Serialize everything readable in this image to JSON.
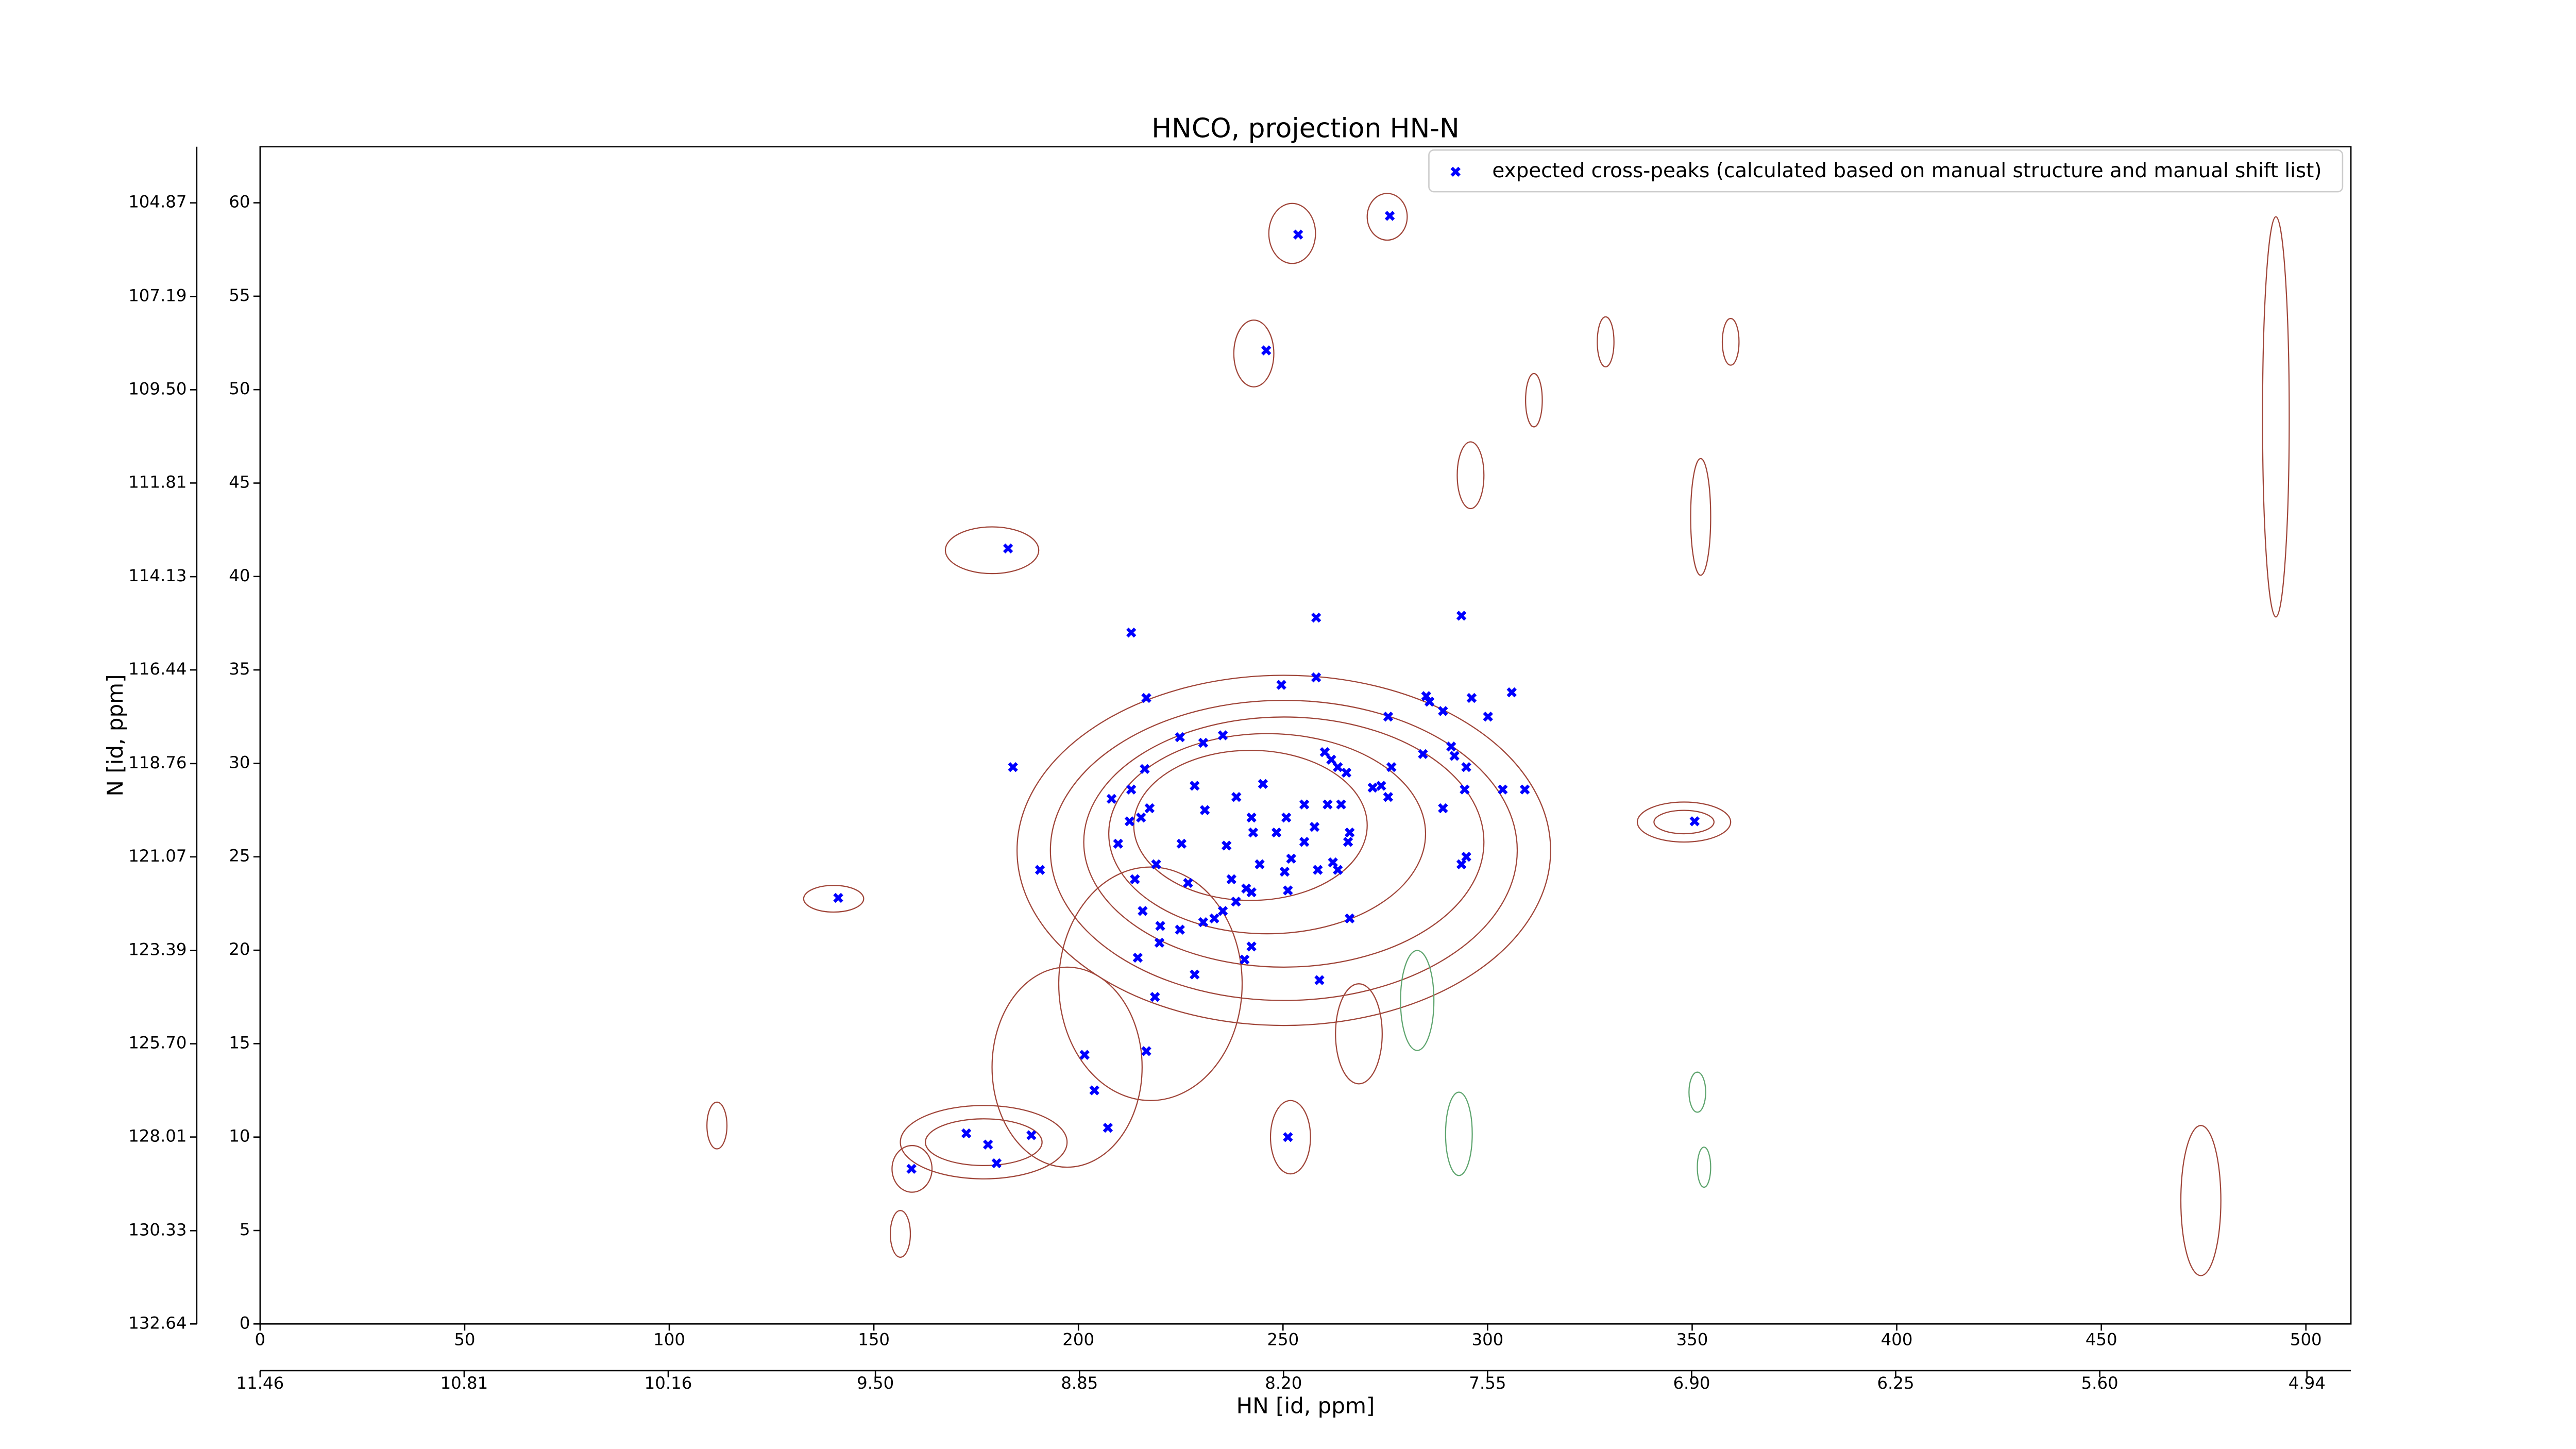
{
  "chart_data": {
    "type": "scatter",
    "title": "HNCO, projection HN-N",
    "xlabel": "HN [id, ppm]",
    "ylabel": "N [id, ppm]",
    "xlim": [
      0,
      511
    ],
    "ylim": [
      0,
      63
    ],
    "xticks": [
      0,
      50,
      100,
      150,
      200,
      250,
      300,
      350,
      400,
      450,
      500
    ],
    "yticks": [
      0,
      5,
      10,
      15,
      20,
      25,
      30,
      35,
      40,
      45,
      50,
      55,
      60
    ],
    "x2lim": [
      11.46,
      4.8
    ],
    "x2ticks": [
      11.46,
      10.81,
      10.16,
      {
        "value": 9.5,
        "label": "9.50"
      },
      8.85,
      {
        "value": 8.2,
        "label": "8.20"
      },
      7.55,
      {
        "value": 6.9,
        "label": "6.90"
      },
      6.25,
      {
        "value": 5.6,
        "label": "5.60"
      },
      4.94
    ],
    "y2lim": [
      132.64,
      103.48
    ],
    "y2ticks": [
      132.64,
      130.33,
      128.01,
      {
        "value": 125.7,
        "label": "125.70"
      },
      123.39,
      121.07,
      118.76,
      116.44,
      114.13,
      111.81,
      {
        "value": 109.5,
        "label": "109.50"
      },
      107.19,
      104.87
    ],
    "legend": "upper right",
    "series": [
      {
        "name": "expected cross-peaks (calculated based on manual structure and manual shift list)",
        "color": "#0000ff",
        "x": [
          276.1,
          253.7,
          245.9,
          182.8,
          212.9,
          258.1,
          293.6,
          216.6,
          249.6,
          258.1,
          285.0,
          285.8,
          289.1,
          296.1,
          305.9,
          275.7,
          300.1,
          224.8,
          235.3,
          230.5,
          260.2,
          261.8,
          263.4,
          265.5,
          284.2,
          291.1,
          291.9,
          294.8,
          184.0,
          216.2,
          228.4,
          245.1,
          276.5,
          208.1,
          212.9,
          238.6,
          271.9,
          274.0,
          294.4,
          303.7,
          309.1,
          275.7,
          217.4,
          230.9,
          255.2,
          260.9,
          264.2,
          289.1,
          212.5,
          215.3,
          242.3,
          250.8,
          350.6,
          242.7,
          248.4,
          257.7,
          266.3,
          209.7,
          225.2,
          236.2,
          255.2,
          265.9,
          294.8,
          293.6,
          219.0,
          244.3,
          252.0,
          262.2,
          190.6,
          213.8,
          237.4,
          250.4,
          258.5,
          263.4,
          226.8,
          241.0,
          242.3,
          251.2,
          141.3,
          238.5,
          215.7,
          235.3,
          233.2,
          266.3,
          220.0,
          224.8,
          230.5,
          219.8,
          242.3,
          240.6,
          214.5,
          228.4,
          258.9,
          218.7,
          216.6,
          201.5,
          203.9,
          207.2,
          172.6,
          177.9,
          180.0,
          188.5,
          251.2,
          159.2
        ],
        "values": [
          59.3,
          58.3,
          52.1,
          41.5,
          37.0,
          37.8,
          37.9,
          33.5,
          34.2,
          34.6,
          33.6,
          33.3,
          32.8,
          33.5,
          33.8,
          32.5,
          32.5,
          31.4,
          31.5,
          31.1,
          30.6,
          30.2,
          29.8,
          29.5,
          30.5,
          30.9,
          30.4,
          29.8,
          29.8,
          29.7,
          28.8,
          28.9,
          29.8,
          28.1,
          28.6,
          28.2,
          28.7,
          28.8,
          28.6,
          28.6,
          28.6,
          28.2,
          27.6,
          27.5,
          27.8,
          27.8,
          27.8,
          27.6,
          26.9,
          27.1,
          27.1,
          27.1,
          26.9,
          26.3,
          26.3,
          26.6,
          26.3,
          25.7,
          25.7,
          25.6,
          25.8,
          25.8,
          25.0,
          24.6,
          24.6,
          24.6,
          24.9,
          24.7,
          24.3,
          23.8,
          23.8,
          24.2,
          24.3,
          24.3,
          23.6,
          23.3,
          23.1,
          23.2,
          22.8,
          22.6,
          22.1,
          22.1,
          21.7,
          21.7,
          21.3,
          21.1,
          21.5,
          20.4,
          20.2,
          19.5,
          19.6,
          18.7,
          18.4,
          17.5,
          14.6,
          14.4,
          12.5,
          10.5,
          10.2,
          9.6,
          8.6,
          10.1,
          10.0,
          8.3
        ]
      }
    ]
  }
}
